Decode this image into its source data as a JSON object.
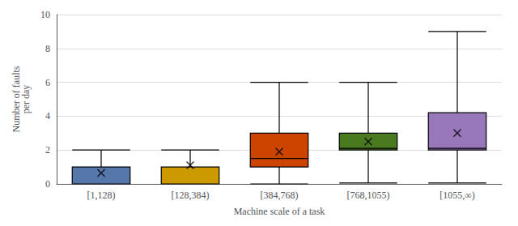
{
  "chart_data": {
    "type": "box",
    "categories": [
      "[1,128)",
      "[128,384)",
      "[384,768)",
      "[768,1055)",
      "[1055,∞)"
    ],
    "values": [
      [
        0.0,
        0.0,
        1.0,
        1.0,
        2.0
      ],
      [
        0.0,
        0.0,
        1.0,
        1.0,
        2.0
      ],
      [
        0.0,
        1.0,
        1.5,
        3.0,
        6.0
      ],
      [
        0.05,
        2.0,
        2.1,
        3.0,
        6.0
      ],
      [
        0.05,
        2.0,
        2.1,
        4.2,
        9.0
      ]
    ],
    "means": [
      0.65,
      1.1,
      1.9,
      2.5,
      3.0
    ],
    "marker": "x",
    "colors": [
      "#5577AA",
      "#CC9900",
      "#CC4400",
      "#4A7A20",
      "#9977BB"
    ],
    "ylabel": "Number of faults\nper day",
    "xlabel": "Machine scale of a task",
    "ylim": [
      0,
      10
    ],
    "yticks": [
      0,
      2,
      4,
      6,
      8,
      10
    ],
    "grid": true
  }
}
